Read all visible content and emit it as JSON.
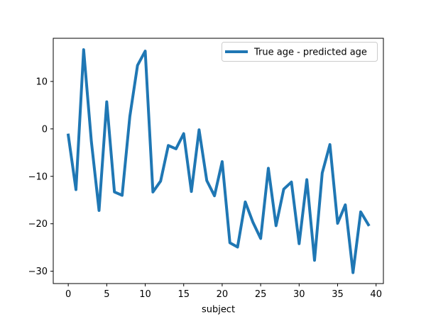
{
  "chart_data": {
    "type": "line",
    "title": "",
    "xlabel": "subject",
    "ylabel": "",
    "xlim": [
      -1.95,
      40.95
    ],
    "ylim": [
      -32.6,
      19.1
    ],
    "xticks": [
      0,
      5,
      10,
      15,
      20,
      25,
      30,
      35,
      40
    ],
    "yticks": [
      -30,
      -20,
      -10,
      0,
      10
    ],
    "grid": false,
    "legend_position": "top-right",
    "line_color": "#1f77b4",
    "series": [
      {
        "name": "True age - predicted age",
        "x": [
          0,
          1,
          2,
          3,
          4,
          5,
          6,
          7,
          8,
          9,
          10,
          11,
          12,
          13,
          14,
          15,
          16,
          17,
          18,
          19,
          20,
          21,
          22,
          23,
          24,
          25,
          26,
          27,
          28,
          29,
          30,
          31,
          32,
          33,
          34,
          35,
          36,
          37,
          38,
          39
        ],
        "values": [
          -1.3,
          -12.8,
          16.7,
          -2.6,
          -17.2,
          5.7,
          -13.3,
          -14.0,
          2.6,
          13.4,
          16.4,
          -13.3,
          -11.0,
          -3.5,
          -4.2,
          -1.0,
          -13.2,
          -0.2,
          -10.9,
          -14.1,
          -6.9,
          -24.0,
          -24.9,
          -15.4,
          -19.7,
          -23.1,
          -8.3,
          -20.4,
          -12.7,
          -11.2,
          -24.2,
          -10.7,
          -27.7,
          -9.3,
          -3.3,
          -19.9,
          -16.0,
          -30.3,
          -17.5,
          -20.2
        ]
      }
    ]
  }
}
